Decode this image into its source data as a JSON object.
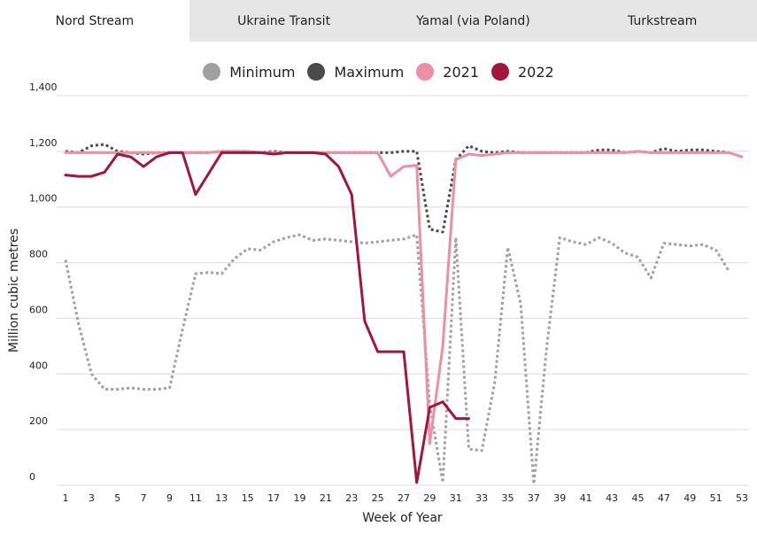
{
  "tabs": [
    {
      "label": "Nord Stream",
      "active": true
    },
    {
      "label": "Ukraine Transit",
      "active": false
    },
    {
      "label": "Yamal (via Poland)",
      "active": false
    },
    {
      "label": "Turkstream",
      "active": false
    }
  ],
  "chart_data": {
    "type": "line",
    "xlabel": "Week of Year",
    "ylabel": "Million cubic metres",
    "xlim": [
      0,
      53
    ],
    "ylim": [
      0,
      1400
    ],
    "x_ticks": [
      1,
      3,
      5,
      7,
      9,
      11,
      13,
      15,
      17,
      19,
      21,
      23,
      25,
      27,
      29,
      31,
      33,
      35,
      37,
      39,
      41,
      43,
      45,
      47,
      49,
      51,
      53
    ],
    "y_ticks": [
      0,
      200,
      400,
      600,
      800,
      1000,
      1200,
      1400
    ],
    "y_tick_labels": [
      "0",
      "200",
      "400",
      "600",
      "800",
      "1,000",
      "1,200",
      "1,400"
    ],
    "grid": "horizontal",
    "legend": "top-center",
    "series": [
      {
        "name": "Minimum",
        "color": "#a0a0a0",
        "style": "dotted",
        "x": [
          1,
          2,
          3,
          4,
          5,
          6,
          7,
          8,
          9,
          10,
          11,
          12,
          13,
          14,
          15,
          16,
          17,
          18,
          19,
          20,
          21,
          22,
          23,
          24,
          25,
          26,
          27,
          28,
          29,
          30,
          31,
          32,
          33,
          34,
          35,
          36,
          37,
          38,
          39,
          40,
          41,
          42,
          43,
          44,
          45,
          46,
          47,
          48,
          49,
          50,
          51,
          52
        ],
        "y": [
          810,
          580,
          400,
          345,
          345,
          350,
          345,
          345,
          350,
          560,
          760,
          765,
          760,
          815,
          850,
          845,
          875,
          890,
          900,
          880,
          885,
          880,
          875,
          870,
          875,
          880,
          885,
          900,
          290,
          10,
          890,
          130,
          125,
          370,
          855,
          650,
          5,
          500,
          890,
          875,
          865,
          890,
          870,
          835,
          820,
          745,
          870,
          865,
          860,
          865,
          845,
          770
        ]
      },
      {
        "name": "Maximum",
        "color": "#4a4a4a",
        "style": "dotted",
        "x": [
          1,
          2,
          3,
          4,
          5,
          6,
          7,
          8,
          9,
          10,
          11,
          12,
          13,
          14,
          15,
          16,
          17,
          18,
          19,
          20,
          21,
          22,
          23,
          24,
          25,
          26,
          27,
          28,
          29,
          30,
          31,
          32,
          33,
          34,
          35,
          36,
          37,
          38,
          39,
          40,
          41,
          42,
          43,
          44,
          45,
          46,
          47,
          48,
          49,
          50,
          51,
          52
        ],
        "y": [
          1200,
          1195,
          1220,
          1225,
          1200,
          1195,
          1190,
          1195,
          1195,
          1195,
          1195,
          1195,
          1200,
          1200,
          1200,
          1195,
          1200,
          1195,
          1195,
          1195,
          1195,
          1195,
          1195,
          1195,
          1195,
          1195,
          1200,
          1200,
          920,
          910,
          1170,
          1220,
          1200,
          1195,
          1200,
          1195,
          1195,
          1195,
          1195,
          1195,
          1195,
          1205,
          1205,
          1195,
          1200,
          1195,
          1210,
          1200,
          1205,
          1205,
          1200,
          1195
        ]
      },
      {
        "name": "2021",
        "color": "#ee8fa3",
        "style": "solid",
        "x": [
          1,
          2,
          3,
          4,
          5,
          6,
          7,
          8,
          9,
          10,
          11,
          12,
          13,
          14,
          15,
          16,
          17,
          18,
          19,
          20,
          21,
          22,
          23,
          24,
          25,
          26,
          27,
          28,
          29,
          30,
          31,
          32,
          33,
          34,
          35,
          36,
          37,
          38,
          39,
          40,
          41,
          42,
          43,
          44,
          45,
          46,
          47,
          48,
          49,
          50,
          51,
          52,
          53
        ],
        "y": [
          1195,
          1195,
          1195,
          1195,
          1195,
          1195,
          1195,
          1195,
          1195,
          1195,
          1195,
          1195,
          1200,
          1200,
          1200,
          1195,
          1195,
          1195,
          1195,
          1195,
          1195,
          1195,
          1195,
          1195,
          1195,
          1110,
          1145,
          1150,
          150,
          500,
          1170,
          1190,
          1185,
          1190,
          1195,
          1195,
          1195,
          1195,
          1195,
          1195,
          1195,
          1195,
          1195,
          1195,
          1200,
          1195,
          1195,
          1195,
          1195,
          1195,
          1195,
          1195,
          1180
        ]
      },
      {
        "name": "2022",
        "color": "#a3163c",
        "style": "solid",
        "x": [
          1,
          2,
          3,
          4,
          5,
          6,
          7,
          8,
          9,
          10,
          11,
          12,
          13,
          14,
          15,
          16,
          17,
          18,
          19,
          20,
          21,
          22,
          23,
          24,
          25,
          26,
          27,
          28,
          29,
          30,
          31,
          32
        ],
        "y": [
          1115,
          1110,
          1110,
          1125,
          1190,
          1180,
          1145,
          1180,
          1195,
          1195,
          1045,
          1120,
          1195,
          1195,
          1195,
          1195,
          1190,
          1195,
          1195,
          1195,
          1190,
          1145,
          1045,
          590,
          480,
          480,
          480,
          10,
          280,
          300,
          240,
          240
        ]
      }
    ]
  }
}
